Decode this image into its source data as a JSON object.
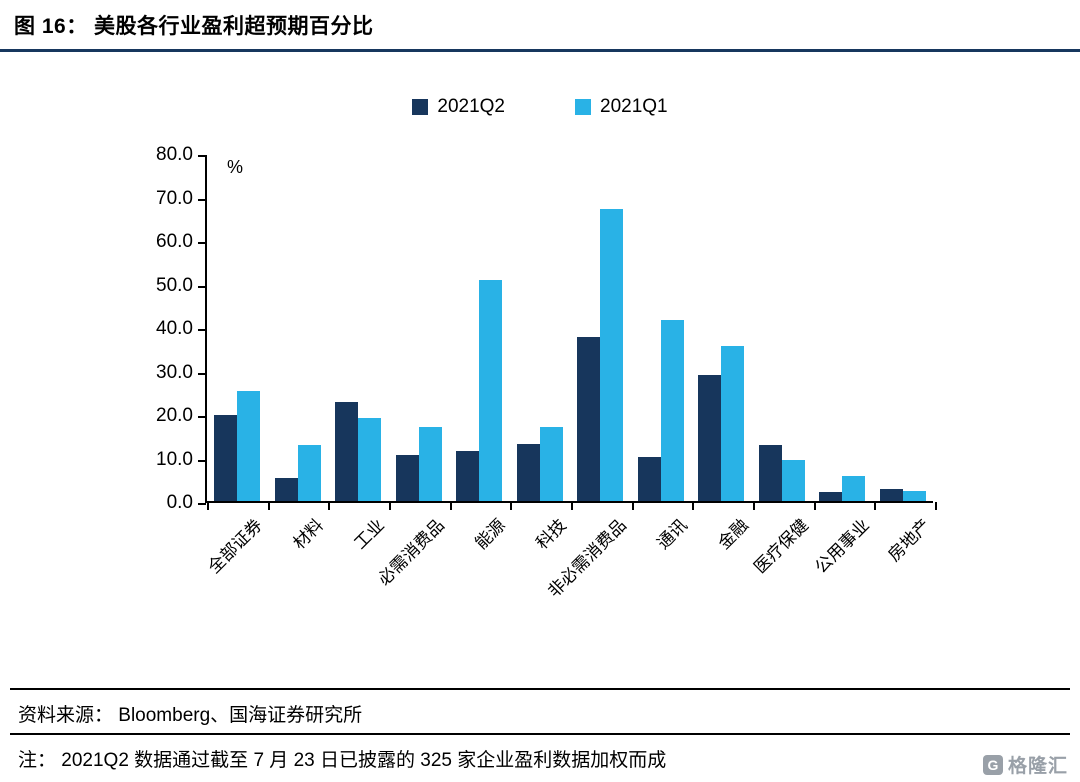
{
  "title": "图 16：  美股各行业盈利超预期百分比",
  "chart_data": {
    "type": "bar",
    "title": "美股各行业盈利超预期百分比",
    "categories": [
      "全部证券",
      "材料",
      "工业",
      "必需消费品",
      "能源",
      "科技",
      "非必需消费品",
      "通讯",
      "金融",
      "医疗保健",
      "公用事业",
      "房地产"
    ],
    "series": [
      {
        "name": "2021Q2",
        "color": "#17365C",
        "values": [
          19.8,
          5.3,
          23.0,
          10.6,
          11.5,
          13.1,
          38.0,
          10.1,
          29.2,
          12.9,
          2.1,
          2.8
        ]
      },
      {
        "name": "2021Q1",
        "color": "#29B2E6",
        "values": [
          25.5,
          12.9,
          19.3,
          17.2,
          51.0,
          17.2,
          67.6,
          41.8,
          35.9,
          9.4,
          5.7,
          2.3
        ]
      }
    ],
    "ylabel": "%",
    "ylim": [
      0,
      80
    ],
    "yticks": [
      "80.0",
      "70.0",
      "60.0",
      "50.0",
      "40.0",
      "30.0",
      "20.0",
      "10.0",
      "0.0"
    ],
    "grid": false,
    "legend_position": "top-center"
  },
  "footer": {
    "source": "资料来源：  Bloomberg、国海证券研究所",
    "note": "注：  2021Q2 数据通过截至 7 月 23 日已披露的 325 家企业盈利数据加权而成"
  },
  "logo": {
    "icon": "G",
    "text": "格隆汇"
  },
  "colors": {
    "accent": "#17375E",
    "axis": "#000000"
  }
}
